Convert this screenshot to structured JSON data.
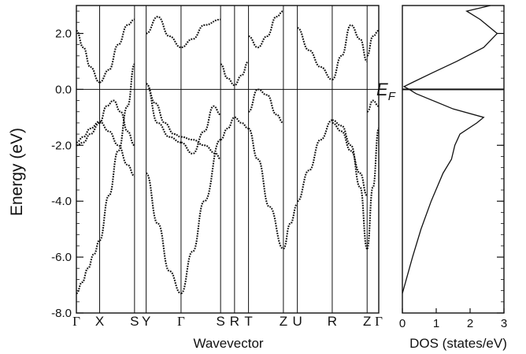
{
  "chart_data": [
    {
      "type": "line",
      "ylabel": "Energy (eV)",
      "xlabel": "Wavevector",
      "ylim": [
        -8.0,
        3.0
      ],
      "y_ticks": [
        "2.0",
        "0.0",
        "-2.0",
        "-4.0",
        "-6.0",
        "-8.0"
      ],
      "y_tick_values": [
        2.0,
        0.0,
        -2.0,
        -4.0,
        -6.0,
        -8.0
      ],
      "fermi_level": 0.0,
      "k_points": [
        "Γ",
        "X",
        "S",
        "Y",
        "Γ",
        "S",
        "R",
        "T",
        "Z",
        "U",
        "R",
        "Z",
        "Γ"
      ],
      "k_positions": [
        0,
        1,
        2.5,
        3.0,
        4.5,
        6.2,
        6.8,
        7.4,
        8.9,
        9.5,
        11.0,
        12.5,
        13.0
      ],
      "series": [
        {
          "k": [
            0,
            0.25,
            0.5,
            0.75,
            1
          ],
          "values": [
            -7.3,
            -6.9,
            -6.4,
            -5.9,
            -5.4
          ]
        },
        {
          "k": [
            1,
            1.4,
            1.8,
            2.2,
            2.5
          ],
          "values": [
            -5.4,
            -3.8,
            -2.2,
            -0.6,
            0.9
          ]
        },
        {
          "k": [
            0,
            0.3,
            0.6,
            1
          ],
          "values": [
            -2.0,
            -1.9,
            -1.6,
            -1.2
          ]
        },
        {
          "k": [
            0,
            0.3,
            0.6,
            1
          ],
          "values": [
            -1.9,
            -1.7,
            -1.4,
            -1.15
          ]
        },
        {
          "k": [
            1,
            1.3,
            1.6,
            1.9,
            2.2,
            2.5
          ],
          "values": [
            -1.2,
            -0.6,
            -0.4,
            -0.8,
            -1.5,
            -2.0
          ]
        },
        {
          "k": [
            1,
            1.4,
            1.8,
            2.2,
            2.5
          ],
          "values": [
            -1.15,
            -1.5,
            -2.0,
            -2.7,
            -3.1
          ]
        },
        {
          "k": [
            0,
            0.3,
            0.6,
            1
          ],
          "values": [
            2.1,
            1.5,
            0.8,
            0.25
          ]
        },
        {
          "k": [
            1,
            1.4,
            1.8,
            2.2,
            2.5
          ],
          "values": [
            0.25,
            0.7,
            1.6,
            2.3,
            2.5
          ]
        },
        {
          "k": [
            3.0,
            3.5,
            4.0,
            4.5
          ],
          "values": [
            0.2,
            -1.2,
            -1.7,
            -1.9
          ]
        },
        {
          "k": [
            3.0,
            3.4,
            3.8,
            4.2,
            4.5
          ],
          "values": [
            0.2,
            -0.5,
            -1.2,
            -1.6,
            -1.7
          ]
        },
        {
          "k": [
            4.5,
            5.0,
            5.5,
            5.9,
            6.2
          ],
          "values": [
            -1.9,
            -2.3,
            -1.5,
            -0.6,
            -0.9
          ]
        },
        {
          "k": [
            4.5,
            5.0,
            5.5,
            6.0,
            6.2
          ],
          "values": [
            -1.7,
            -1.8,
            -2.0,
            -2.3,
            -2.5
          ]
        },
        {
          "k": [
            3.0,
            3.5,
            4.0,
            4.5
          ],
          "values": [
            -3.0,
            -4.8,
            -6.5,
            -7.3
          ]
        },
        {
          "k": [
            4.5,
            5.0,
            5.5,
            6.2
          ],
          "values": [
            -7.3,
            -5.8,
            -4.0,
            -1.8
          ]
        },
        {
          "k": [
            3.0,
            3.5,
            4.0,
            4.5,
            5.0,
            5.5,
            6.2
          ],
          "values": [
            2.0,
            2.6,
            1.9,
            1.5,
            1.8,
            2.3,
            2.5
          ]
        },
        {
          "k": [
            6.2,
            6.5,
            6.8,
            7.1,
            7.4
          ],
          "values": [
            -1.8,
            -1.4,
            -1.0,
            -1.2,
            -1.4
          ]
        },
        {
          "k": [
            6.2,
            6.5,
            6.8,
            7.1,
            7.4
          ],
          "values": [
            0.9,
            0.4,
            0.15,
            0.5,
            1.0
          ]
        },
        {
          "k": [
            7.4,
            7.8,
            8.3,
            8.9
          ],
          "values": [
            -1.4,
            -2.5,
            -4.2,
            -5.7
          ]
        },
        {
          "k": [
            7.4,
            7.8,
            8.2,
            8.6,
            8.9
          ],
          "values": [
            -0.8,
            0.0,
            -0.2,
            -0.9,
            -1.2
          ]
        },
        {
          "k": [
            7.4,
            7.8,
            8.2,
            8.6,
            8.9
          ],
          "values": [
            1.9,
            1.5,
            1.9,
            2.6,
            2.8
          ]
        },
        {
          "k": [
            8.9,
            9.2,
            9.5
          ],
          "values": [
            -5.7,
            -4.8,
            -4.1
          ]
        },
        {
          "k": [
            9.5,
            10.0,
            10.5,
            11.0
          ],
          "values": [
            -4.0,
            -2.9,
            -1.8,
            -1.1
          ]
        },
        {
          "k": [
            11.0,
            11.4,
            11.8,
            12.2,
            12.5
          ],
          "values": [
            -1.1,
            -1.3,
            -2.0,
            -3.5,
            -5.7
          ]
        },
        {
          "k": [
            11.0,
            11.4,
            11.8,
            12.2,
            12.5
          ],
          "values": [
            -1.2,
            -1.5,
            -2.2,
            -3.0,
            -3.8
          ]
        },
        {
          "k": [
            9.5,
            10.0,
            10.5,
            11.0
          ],
          "values": [
            2.2,
            1.4,
            0.8,
            0.35
          ]
        },
        {
          "k": [
            11.0,
            11.4,
            11.8,
            12.2,
            12.5
          ],
          "values": [
            0.35,
            1.2,
            2.3,
            1.8,
            1.0
          ]
        },
        {
          "k": [
            12.5,
            12.75,
            13.0
          ],
          "values": [
            -5.7,
            -3.5,
            -1.4
          ]
        },
        {
          "k": [
            12.5,
            12.75,
            13.0
          ],
          "values": [
            -0.8,
            -0.4,
            -0.6
          ]
        },
        {
          "k": [
            12.5,
            12.75,
            13.0
          ],
          "values": [
            1.2,
            1.9,
            2.1
          ]
        }
      ]
    },
    {
      "type": "line",
      "xlabel": "DOS (states/eV)",
      "xlim": [
        0,
        3
      ],
      "x_ticks": [
        "0",
        "1",
        "2",
        "3"
      ],
      "x_tick_values": [
        0,
        1,
        2,
        3
      ],
      "annotation": {
        "main": "E",
        "sub": "F"
      },
      "dos": [
        {
          "e": -7.3,
          "d": 0.0
        },
        {
          "e": -6.0,
          "d": 0.3
        },
        {
          "e": -5.0,
          "d": 0.55
        },
        {
          "e": -4.0,
          "d": 0.85
        },
        {
          "e": -3.0,
          "d": 1.2
        },
        {
          "e": -2.5,
          "d": 1.45
        },
        {
          "e": -2.0,
          "d": 1.55
        },
        {
          "e": -1.6,
          "d": 1.7
        },
        {
          "e": -1.2,
          "d": 2.2
        },
        {
          "e": -1.0,
          "d": 2.4
        },
        {
          "e": -0.7,
          "d": 1.5
        },
        {
          "e": -0.4,
          "d": 0.9
        },
        {
          "e": -0.15,
          "d": 0.4
        },
        {
          "e": 0.0,
          "d": 0.2
        },
        {
          "e": 0.1,
          "d": 0.05
        },
        {
          "e": 0.25,
          "d": 0.3
        },
        {
          "e": 0.6,
          "d": 0.9
        },
        {
          "e": 1.0,
          "d": 1.6
        },
        {
          "e": 1.5,
          "d": 2.4
        },
        {
          "e": 2.0,
          "d": 2.8
        },
        {
          "e": 2.5,
          "d": 2.3
        },
        {
          "e": 2.8,
          "d": 1.9
        },
        {
          "e": 3.0,
          "d": 2.6
        }
      ]
    }
  ]
}
